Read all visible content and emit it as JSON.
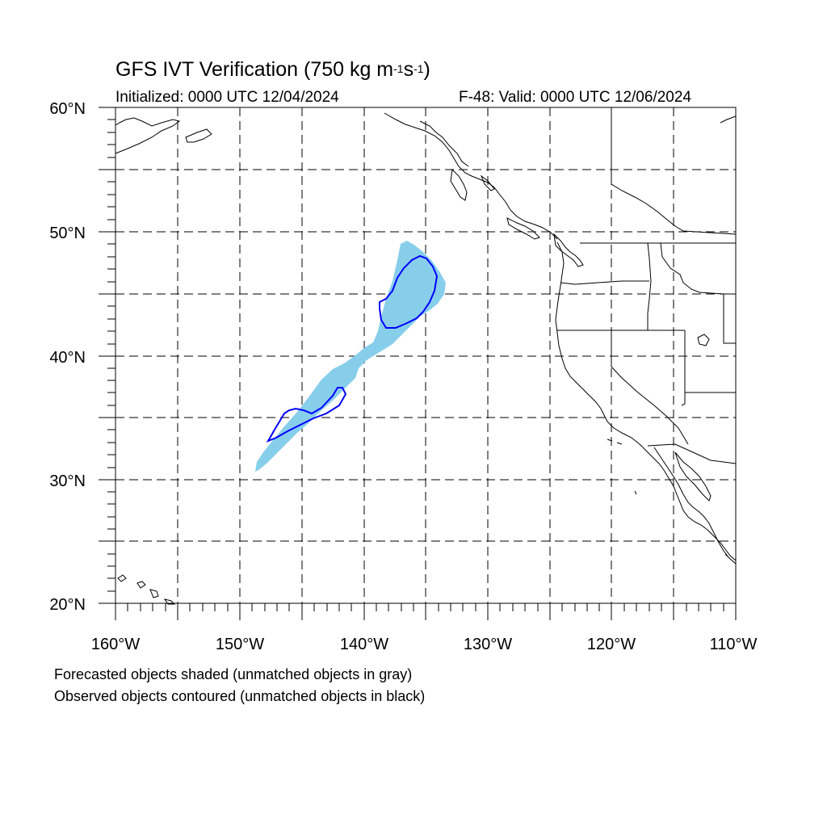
{
  "title": {
    "prefix": "GFS IVT Verification (750 kg m",
    "exp1": "-1",
    "mid": "s",
    "exp2": "-1",
    "suffix": ")"
  },
  "initialized": "Initialized: 0000 UTC 12/04/2024",
  "valid": "F-48: Valid: 0000 UTC 12/06/2024",
  "lat_labels": [
    "60°N",
    "50°N",
    "40°N",
    "30°N",
    "20°N"
  ],
  "lon_labels": [
    "160°W",
    "150°W",
    "140°W",
    "130°W",
    "120°W",
    "110°W"
  ],
  "footnote": [
    "Forecasted objects shaded (unmatched objects in gray)",
    "Observed objects contoured (unmatched objects in black)"
  ],
  "colors": {
    "forecast_fill": "#87ceeb",
    "observed_contour": "#0000ff",
    "coastline": "#000000",
    "grid": "#000000"
  }
}
